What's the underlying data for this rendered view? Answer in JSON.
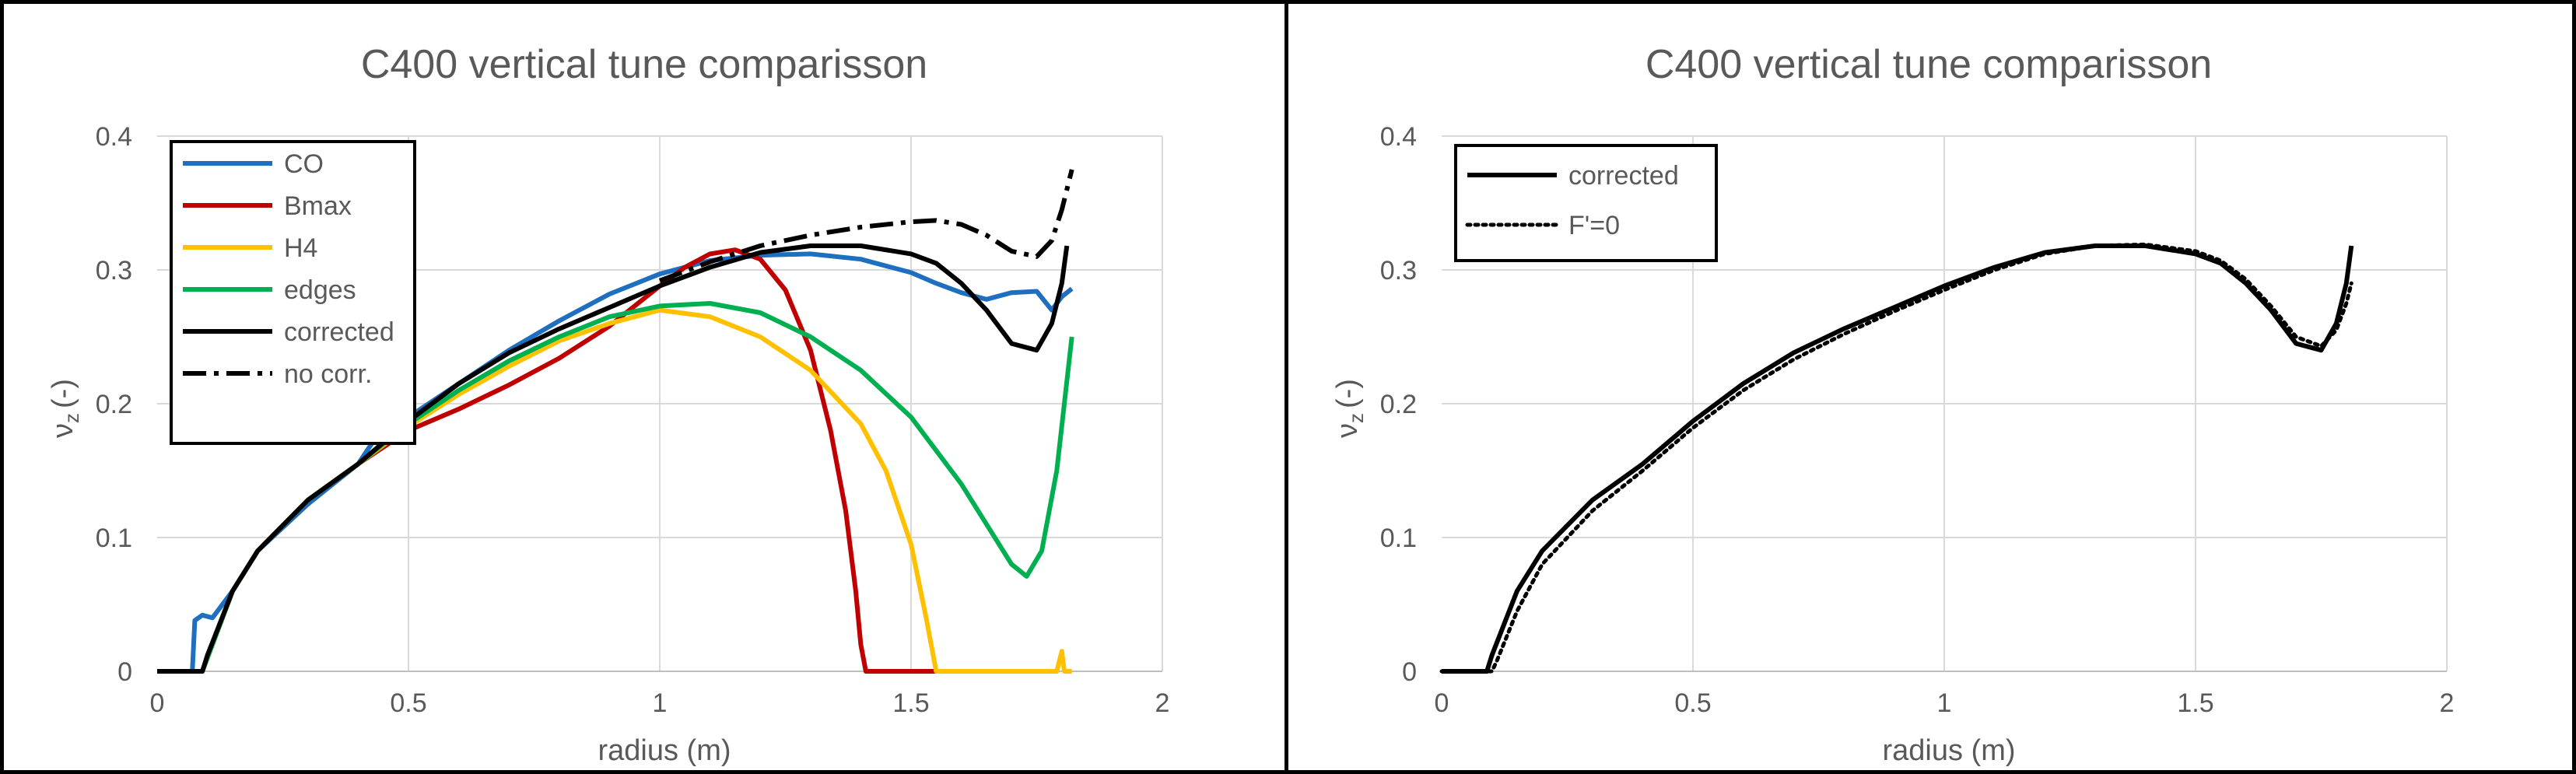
{
  "chart_data": [
    {
      "type": "line",
      "title": "C400 vertical tune comparisson",
      "xlabel": "radius (m)",
      "ylabel_symbol": "ν",
      "ylabel_sub": "z",
      "ylabel_unit": "(-)",
      "xlim": [
        0,
        2
      ],
      "ylim": [
        0,
        0.4
      ],
      "xticks": [
        0,
        0.5,
        1,
        1.5,
        2
      ],
      "xtick_labels": [
        "0",
        "0.5",
        "1",
        "1.5",
        "2"
      ],
      "yticks": [
        0,
        0.1,
        0.2,
        0.3,
        0.4
      ],
      "ytick_labels": [
        "0",
        "0.1",
        "0.2",
        "0.3",
        "0.4"
      ],
      "grid": true,
      "legend_position": "top-left",
      "series": [
        {
          "name": "CO",
          "color": "#1f6fc0",
          "dash": "solid",
          "x": [
            0,
            0.07,
            0.075,
            0.09,
            0.11,
            0.15,
            0.2,
            0.3,
            0.4,
            0.43,
            0.5,
            0.6,
            0.7,
            0.8,
            0.9,
            1.0,
            1.1,
            1.2,
            1.3,
            1.4,
            1.5,
            1.55,
            1.6,
            1.65,
            1.7,
            1.75,
            1.78,
            1.8,
            1.82
          ],
          "y": [
            0,
            0,
            0.038,
            0.042,
            0.04,
            0.06,
            0.09,
            0.125,
            0.155,
            0.172,
            0.19,
            0.215,
            0.24,
            0.262,
            0.282,
            0.297,
            0.307,
            0.311,
            0.312,
            0.308,
            0.298,
            0.29,
            0.283,
            0.278,
            0.283,
            0.284,
            0.27,
            0.28,
            0.286
          ]
        },
        {
          "name": "Bmax",
          "color": "#c00000",
          "dash": "solid",
          "x": [
            0,
            0.09,
            0.1,
            0.15,
            0.2,
            0.3,
            0.4,
            0.5,
            0.6,
            0.7,
            0.8,
            0.9,
            1.0,
            1.05,
            1.1,
            1.15,
            1.2,
            1.25,
            1.3,
            1.34,
            1.37,
            1.39,
            1.4,
            1.41,
            1.45,
            1.5,
            1.55
          ],
          "y": [
            0,
            0,
            0.01,
            0.06,
            0.09,
            0.128,
            0.155,
            0.18,
            0.196,
            0.214,
            0.234,
            0.258,
            0.288,
            0.302,
            0.312,
            0.315,
            0.308,
            0.285,
            0.24,
            0.18,
            0.12,
            0.06,
            0.02,
            0,
            0,
            0,
            0
          ]
        },
        {
          "name": "H4",
          "color": "#ffc000",
          "dash": "solid",
          "x": [
            0,
            0.09,
            0.1,
            0.15,
            0.2,
            0.3,
            0.4,
            0.5,
            0.6,
            0.7,
            0.8,
            0.9,
            1.0,
            1.1,
            1.2,
            1.3,
            1.4,
            1.45,
            1.5,
            1.53,
            1.55,
            1.6,
            1.7,
            1.79,
            1.8,
            1.805,
            1.81,
            1.82
          ],
          "y": [
            0,
            0,
            0.01,
            0.06,
            0.09,
            0.128,
            0.155,
            0.183,
            0.207,
            0.228,
            0.247,
            0.26,
            0.27,
            0.265,
            0.25,
            0.225,
            0.185,
            0.15,
            0.095,
            0.04,
            0,
            0,
            0,
            0,
            0.015,
            0,
            0,
            0
          ]
        },
        {
          "name": "edges",
          "color": "#00b050",
          "dash": "solid",
          "x": [
            0,
            0.09,
            0.1,
            0.15,
            0.2,
            0.3,
            0.4,
            0.5,
            0.6,
            0.7,
            0.8,
            0.9,
            1.0,
            1.1,
            1.2,
            1.3,
            1.4,
            1.5,
            1.6,
            1.65,
            1.7,
            1.73,
            1.76,
            1.79,
            1.82
          ],
          "y": [
            0,
            0,
            0.01,
            0.06,
            0.09,
            0.128,
            0.155,
            0.185,
            0.21,
            0.232,
            0.25,
            0.265,
            0.273,
            0.275,
            0.268,
            0.25,
            0.225,
            0.19,
            0.14,
            0.11,
            0.08,
            0.071,
            0.09,
            0.15,
            0.25
          ]
        },
        {
          "name": "corrected",
          "color": "#000000",
          "dash": "solid",
          "x": [
            0,
            0.09,
            0.1,
            0.15,
            0.2,
            0.3,
            0.4,
            0.5,
            0.6,
            0.7,
            0.8,
            0.9,
            1.0,
            1.1,
            1.2,
            1.3,
            1.4,
            1.5,
            1.55,
            1.6,
            1.65,
            1.7,
            1.75,
            1.78,
            1.8,
            1.81
          ],
          "y": [
            0,
            0,
            0.012,
            0.06,
            0.09,
            0.128,
            0.155,
            0.187,
            0.215,
            0.238,
            0.256,
            0.272,
            0.288,
            0.302,
            0.313,
            0.318,
            0.318,
            0.312,
            0.305,
            0.29,
            0.27,
            0.245,
            0.24,
            0.26,
            0.29,
            0.318
          ]
        },
        {
          "name": "no corr.",
          "color": "#000000",
          "dash": "dashdot",
          "x": [
            1.0,
            1.1,
            1.2,
            1.3,
            1.4,
            1.5,
            1.55,
            1.6,
            1.65,
            1.7,
            1.75,
            1.78,
            1.8,
            1.82
          ],
          "y": [
            0.292,
            0.306,
            0.318,
            0.326,
            0.332,
            0.336,
            0.337,
            0.334,
            0.326,
            0.314,
            0.31,
            0.322,
            0.345,
            0.375
          ]
        }
      ]
    },
    {
      "type": "line",
      "title": "C400 vertical tune comparisson",
      "xlabel": "radius (m)",
      "ylabel_symbol": "ν",
      "ylabel_sub": "z",
      "ylabel_unit": "(-)",
      "xlim": [
        0,
        2
      ],
      "ylim": [
        0,
        0.4
      ],
      "xticks": [
        0,
        0.5,
        1,
        1.5,
        2
      ],
      "xtick_labels": [
        "0",
        "0.5",
        "1",
        "1.5",
        "2"
      ],
      "yticks": [
        0,
        0.1,
        0.2,
        0.3,
        0.4
      ],
      "ytick_labels": [
        "0",
        "0.1",
        "0.2",
        "0.3",
        "0.4"
      ],
      "grid": true,
      "legend_position": "top-left",
      "series": [
        {
          "name": "corrected",
          "color": "#000000",
          "dash": "solid",
          "x": [
            0,
            0.09,
            0.1,
            0.15,
            0.2,
            0.3,
            0.4,
            0.5,
            0.6,
            0.7,
            0.8,
            0.9,
            1.0,
            1.1,
            1.2,
            1.3,
            1.4,
            1.5,
            1.55,
            1.6,
            1.65,
            1.7,
            1.75,
            1.78,
            1.8,
            1.81
          ],
          "y": [
            0,
            0,
            0.012,
            0.06,
            0.09,
            0.128,
            0.155,
            0.187,
            0.215,
            0.238,
            0.256,
            0.272,
            0.288,
            0.302,
            0.313,
            0.318,
            0.318,
            0.312,
            0.305,
            0.29,
            0.27,
            0.245,
            0.24,
            0.26,
            0.29,
            0.318
          ]
        },
        {
          "name": "F'=0",
          "color": "#000000",
          "dash": "dotted",
          "x": [
            0,
            0.1,
            0.11,
            0.15,
            0.2,
            0.3,
            0.4,
            0.5,
            0.6,
            0.7,
            0.8,
            0.9,
            1.0,
            1.1,
            1.2,
            1.3,
            1.4,
            1.5,
            1.55,
            1.6,
            1.65,
            1.7,
            1.75,
            1.78,
            1.8,
            1.81
          ],
          "y": [
            0,
            0,
            0.008,
            0.045,
            0.08,
            0.12,
            0.15,
            0.182,
            0.21,
            0.233,
            0.252,
            0.269,
            0.285,
            0.3,
            0.312,
            0.318,
            0.319,
            0.314,
            0.307,
            0.293,
            0.273,
            0.25,
            0.243,
            0.255,
            0.275,
            0.29
          ]
        }
      ]
    }
  ]
}
